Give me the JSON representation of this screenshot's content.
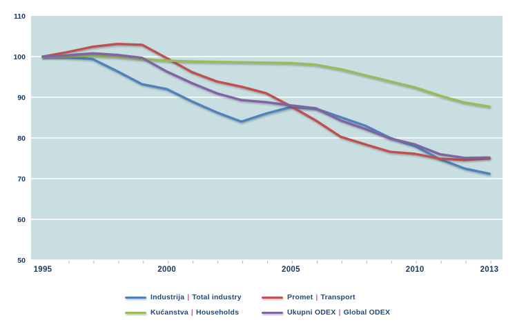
{
  "ui": {
    "separator": "|"
  },
  "chart_data": {
    "type": "line",
    "title": "",
    "xlabel": "",
    "ylabel": "",
    "x": [
      1995,
      1996,
      1997,
      1998,
      1999,
      2000,
      2001,
      2002,
      2003,
      2004,
      2005,
      2006,
      2007,
      2008,
      2009,
      2010,
      2011,
      2012,
      2013
    ],
    "series": [
      {
        "name_hr": "Industrija",
        "name_en": "Total industry",
        "color": "#4f81bd",
        "values": [
          100.0,
          99.8,
          99.4,
          96.4,
          93.2,
          92.0,
          89.0,
          86.3,
          84.0,
          86.0,
          87.6,
          87.2,
          85.1,
          83.0,
          80.0,
          78.0,
          74.8,
          72.5,
          71.2
        ]
      },
      {
        "name_hr": "Promet",
        "name_en": "Transport",
        "color": "#c0504d",
        "values": [
          100.0,
          101.1,
          102.4,
          103.1,
          102.9,
          99.6,
          96.2,
          93.9,
          92.6,
          91.0,
          87.8,
          84.3,
          80.3,
          78.4,
          76.6,
          76.1,
          74.9,
          74.6,
          75.0
        ]
      },
      {
        "name_hr": "Kućanstva",
        "name_en": "Households",
        "color": "#9bbb59",
        "values": [
          99.9,
          100.0,
          100.2,
          99.9,
          99.4,
          99.0,
          98.8,
          98.7,
          98.6,
          98.5,
          98.4,
          98.0,
          96.9,
          95.4,
          93.9,
          92.4,
          90.4,
          88.7,
          87.7
        ]
      },
      {
        "name_hr": "Ukupni ODEX",
        "name_en": "Global ODEX",
        "color": "#8064a2",
        "values": [
          100.0,
          100.3,
          100.8,
          100.4,
          99.7,
          96.3,
          93.5,
          91.0,
          89.3,
          88.8,
          88.0,
          87.3,
          84.3,
          82.2,
          79.9,
          78.4,
          76.0,
          75.1,
          75.2
        ]
      }
    ],
    "ylim": [
      50,
      110
    ],
    "y_ticks": [
      50,
      60,
      70,
      80,
      90,
      100,
      110
    ],
    "x_tick_labels": [
      1995,
      2000,
      2005,
      2010,
      2013
    ],
    "grid": true,
    "legend_position": "bottom",
    "style": {
      "plot_bg": "#c9dee1",
      "grid_color": "#ffffff",
      "label_color": "#17375e",
      "separator_color": "#c45b9e",
      "tick_color": "#aac6cc"
    }
  }
}
